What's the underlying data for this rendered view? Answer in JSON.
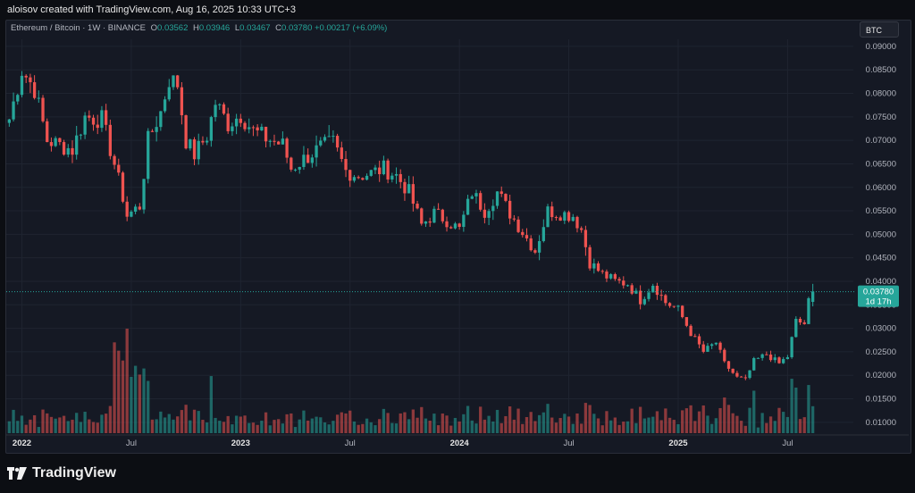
{
  "header": {
    "attribution": "aloisov created with TradingView.com, Aug 16, 2025 10:33 UTC+3"
  },
  "legend": {
    "symbol": "Ethereum / Bitcoin · 1W · BINANCE",
    "open_label": "O",
    "open": "0.03562",
    "high_label": "H",
    "high": "0.03946",
    "low_label": "L",
    "low": "0.03467",
    "close_label": "C",
    "close": "0.03780",
    "change": "+0.00217 (+6.09%)"
  },
  "currency_button": "BTC",
  "price_tag": {
    "price": "0.03780",
    "countdown": "1d 17h"
  },
  "footer": {
    "brand": "TradingView"
  },
  "colors": {
    "up": "#26a69a",
    "down": "#ef5350",
    "grid": "#1f2430",
    "background": "#151924"
  },
  "chart_data": {
    "type": "candlestick",
    "interval": "1W",
    "ylim": [
      0.0075,
      0.0915
    ],
    "y_ticks": [
      "0.09000",
      "0.08500",
      "0.08000",
      "0.07500",
      "0.07000",
      "0.06500",
      "0.06000",
      "0.05500",
      "0.05000",
      "0.04500",
      "0.04000",
      "0.03500",
      "0.03000",
      "0.02500",
      "0.02000",
      "0.01500",
      "0.01000"
    ],
    "x_labels": [
      {
        "label": "2022",
        "week": 3,
        "bold": true
      },
      {
        "label": "Jul",
        "week": 29,
        "bold": false
      },
      {
        "label": "2023",
        "week": 55,
        "bold": true
      },
      {
        "label": "Jul",
        "week": 81,
        "bold": false
      },
      {
        "label": "2024",
        "week": 107,
        "bold": true
      },
      {
        "label": "Jul",
        "week": 133,
        "bold": false
      },
      {
        "label": "2025",
        "week": 159,
        "bold": true
      },
      {
        "label": "Jul",
        "week": 185,
        "bold": false
      }
    ],
    "anchors": [
      [
        0,
        0.0745
      ],
      [
        3,
        0.085
      ],
      [
        6,
        0.081
      ],
      [
        9,
        0.07
      ],
      [
        12,
        0.069
      ],
      [
        15,
        0.068
      ],
      [
        18,
        0.075
      ],
      [
        22,
        0.0745
      ],
      [
        25,
        0.065
      ],
      [
        27,
        0.058
      ],
      [
        28,
        0.054
      ],
      [
        31,
        0.056
      ],
      [
        33,
        0.07
      ],
      [
        36,
        0.076
      ],
      [
        38,
        0.083
      ],
      [
        40,
        0.082
      ],
      [
        42,
        0.07
      ],
      [
        44,
        0.067
      ],
      [
        47,
        0.071
      ],
      [
        49,
        0.078
      ],
      [
        52,
        0.0735
      ],
      [
        55,
        0.0755
      ],
      [
        58,
        0.072
      ],
      [
        61,
        0.0705
      ],
      [
        65,
        0.069
      ],
      [
        67,
        0.064
      ],
      [
        70,
        0.066
      ],
      [
        74,
        0.0685
      ],
      [
        77,
        0.0695
      ],
      [
        80,
        0.0635
      ],
      [
        83,
        0.0625
      ],
      [
        86,
        0.063
      ],
      [
        89,
        0.064
      ],
      [
        92,
        0.0625
      ],
      [
        95,
        0.059
      ],
      [
        98,
        0.052
      ],
      [
        101,
        0.0545
      ],
      [
        104,
        0.053
      ],
      [
        107,
        0.051
      ],
      [
        110,
        0.059
      ],
      [
        113,
        0.055
      ],
      [
        116,
        0.059
      ],
      [
        119,
        0.0545
      ],
      [
        122,
        0.0505
      ],
      [
        125,
        0.0465
      ],
      [
        128,
        0.055
      ],
      [
        131,
        0.0545
      ],
      [
        134,
        0.054
      ],
      [
        136,
        0.051
      ],
      [
        138,
        0.044
      ],
      [
        141,
        0.0415
      ],
      [
        144,
        0.04
      ],
      [
        147,
        0.0395
      ],
      [
        150,
        0.036
      ],
      [
        153,
        0.0395
      ],
      [
        156,
        0.0355
      ],
      [
        159,
        0.034
      ],
      [
        162,
        0.029
      ],
      [
        165,
        0.025
      ],
      [
        168,
        0.027
      ],
      [
        170,
        0.0225
      ],
      [
        173,
        0.0195
      ],
      [
        175,
        0.019
      ],
      [
        177,
        0.023
      ],
      [
        180,
        0.0245
      ],
      [
        183,
        0.0225
      ],
      [
        185,
        0.024
      ],
      [
        187,
        0.0315
      ],
      [
        189,
        0.031
      ],
      [
        190,
        0.0356
      ],
      [
        191,
        0.0378
      ]
    ],
    "last": {
      "open": 0.03562,
      "high": 0.03946,
      "low": 0.03467,
      "close": 0.0378
    }
  }
}
